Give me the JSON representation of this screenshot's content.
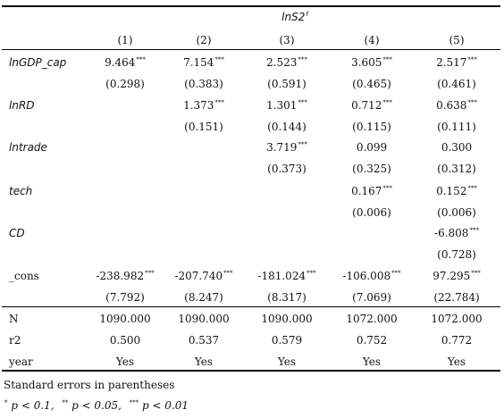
{
  "table": {
    "dep_var": "lnS2",
    "dep_var_sup": "f",
    "col_headers": [
      "(1)",
      "(2)",
      "(3)",
      "(4)",
      "(5)"
    ],
    "rows": [
      {
        "label": "lnGDP_cap",
        "italic": true,
        "coef": [
          {
            "v": "9.464",
            "s": "***"
          },
          {
            "v": "7.154",
            "s": "***"
          },
          {
            "v": "2.523",
            "s": "***"
          },
          {
            "v": "3.605",
            "s": "***"
          },
          {
            "v": "2.517",
            "s": "***"
          }
        ],
        "se": [
          "(0.298)",
          "(0.383)",
          "(0.591)",
          "(0.465)",
          "(0.461)"
        ]
      },
      {
        "label": "lnRD",
        "italic": true,
        "coef": [
          {
            "v": "",
            "s": ""
          },
          {
            "v": "1.373",
            "s": "***"
          },
          {
            "v": "1.301",
            "s": "***"
          },
          {
            "v": "0.712",
            "s": "***"
          },
          {
            "v": "0.638",
            "s": "***"
          }
        ],
        "se": [
          "",
          "(0.151)",
          "(0.144)",
          "(0.115)",
          "(0.111)"
        ]
      },
      {
        "label": "lntrade",
        "italic": true,
        "coef": [
          {
            "v": "",
            "s": ""
          },
          {
            "v": "",
            "s": ""
          },
          {
            "v": "3.719",
            "s": "***"
          },
          {
            "v": "0.099",
            "s": ""
          },
          {
            "v": "0.300",
            "s": ""
          }
        ],
        "se": [
          "",
          "",
          "(0.373)",
          "(0.325)",
          "(0.312)"
        ]
      },
      {
        "label": "tech",
        "italic": true,
        "coef": [
          {
            "v": "",
            "s": ""
          },
          {
            "v": "",
            "s": ""
          },
          {
            "v": "",
            "s": ""
          },
          {
            "v": "0.167",
            "s": "***"
          },
          {
            "v": "0.152",
            "s": "***"
          }
        ],
        "se": [
          "",
          "",
          "",
          "(0.006)",
          "(0.006)"
        ]
      },
      {
        "label": "CD",
        "italic": true,
        "coef": [
          {
            "v": "",
            "s": ""
          },
          {
            "v": "",
            "s": ""
          },
          {
            "v": "",
            "s": ""
          },
          {
            "v": "",
            "s": ""
          },
          {
            "v": "-6.808",
            "s": "***"
          }
        ],
        "se": [
          "",
          "",
          "",
          "",
          "(0.728)"
        ]
      },
      {
        "label": "_cons",
        "italic": false,
        "coef": [
          {
            "v": "-238.982",
            "s": "***"
          },
          {
            "v": "-207.740",
            "s": "***"
          },
          {
            "v": "-181.024",
            "s": "***"
          },
          {
            "v": "-106.008",
            "s": "***"
          },
          {
            "v": "97.295",
            "s": "***"
          }
        ],
        "se": [
          "(7.792)",
          "(8.247)",
          "(8.317)",
          "(7.069)",
          "(22.784)"
        ]
      }
    ],
    "stats": [
      {
        "label": "N",
        "values": [
          "1090.000",
          "1090.000",
          "1090.000",
          "1072.000",
          "1072.000"
        ]
      },
      {
        "label": "r2",
        "values": [
          "0.500",
          "0.537",
          "0.579",
          "0.752",
          "0.772"
        ]
      },
      {
        "label": "year",
        "values": [
          "Yes",
          "Yes",
          "Yes",
          "Yes",
          "Yes"
        ]
      }
    ]
  },
  "notes": {
    "line1": "Standard errors in parentheses",
    "stars1": "*",
    "p1": "p < 0.1,",
    "stars2": "**",
    "p2": "p < 0.05,",
    "stars3": "***",
    "p3": "p < 0.01"
  }
}
